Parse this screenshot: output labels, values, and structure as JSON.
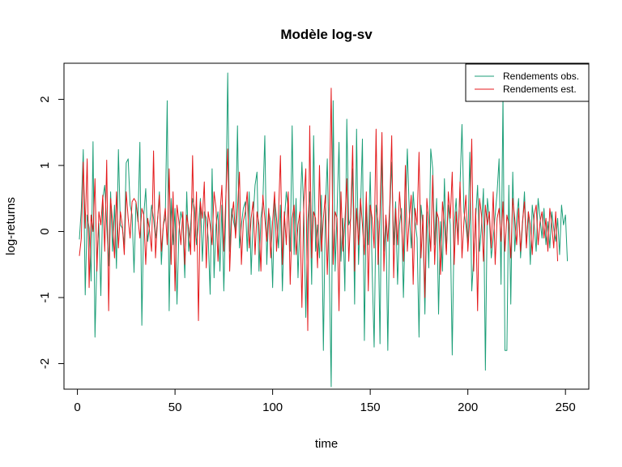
{
  "chart_data": {
    "type": "line",
    "title": "Modèle log-sv",
    "xlabel": "time",
    "ylabel": "log-returns",
    "xlim": [
      1,
      252
    ],
    "ylim": [
      -2.35,
      2.4
    ],
    "x_ticks": [
      0,
      50,
      100,
      150,
      200,
      250
    ],
    "y_ticks": [
      -2,
      -1,
      0,
      1,
      2
    ],
    "grid": false,
    "legend_position": "top-right",
    "series": [
      {
        "name": "Rendements obs.",
        "color": "#1b9e77",
        "values": [
          -0.12,
          0.35,
          1.24,
          -0.96,
          0.25,
          0.05,
          -0.75,
          1.36,
          -1.6,
          -0.4,
          0.12,
          -0.97,
          0.5,
          0.7,
          0.1,
          -0.52,
          0.6,
          -0.3,
          0.4,
          -0.56,
          1.24,
          0.1,
          0.05,
          -0.2,
          1.04,
          1.1,
          0.4,
          0.25,
          -0.62,
          0.44,
          0.15,
          1.35,
          -1.42,
          0.25,
          0.65,
          -0.15,
          0.1,
          0.4,
          0.2,
          -0.1,
          0.15,
          0.6,
          -0.5,
          0.1,
          0.2,
          1.98,
          -1.2,
          0.5,
          -0.2,
          0.35,
          -1.1,
          0.0,
          0.3,
          0.15,
          -0.7,
          0.6,
          -0.3,
          0.1,
          0.5,
          0.35,
          -0.2,
          0.1,
          0.5,
          -0.45,
          0.3,
          0.2,
          -0.1,
          -0.95,
          0.95,
          -0.7,
          0.1,
          0.3,
          -0.6,
          0.4,
          -0.9,
          0.3,
          2.4,
          -0.3,
          0.35,
          0.15,
          0.0,
          1.6,
          -0.25,
          0.1,
          0.35,
          0.45,
          -0.3,
          0.6,
          -0.65,
          0.2,
          0.7,
          0.9,
          -0.6,
          0.2,
          0.45,
          1.45,
          -0.5,
          0.3,
          0.15,
          -0.85,
          0.5,
          0.2,
          -0.25,
          0.4,
          -0.9,
          0.15,
          0.6,
          0.35,
          -0.3,
          1.6,
          -0.35,
          0.5,
          -0.7,
          0.2,
          1.05,
          0.25,
          -1.3,
          0.15,
          0.6,
          -0.8,
          1.45,
          -0.3,
          0.1,
          -0.4,
          0.55,
          -1.8,
          0.3,
          1.1,
          -0.5,
          -2.35,
          1.98,
          -0.6,
          0.3,
          1.35,
          -0.45,
          0.2,
          -0.9,
          1.7,
          0.1,
          0.2,
          0.95,
          -1.1,
          1.55,
          -0.5,
          0.3,
          1.4,
          -1.65,
          0.5,
          -0.2,
          0.9,
          -0.6,
          -1.75,
          0.4,
          0.15,
          -1.7,
          1.3,
          -0.3,
          0.2,
          -1.8,
          0.3,
          1.05,
          -0.2,
          0.45,
          -0.8,
          0.1,
          0.35,
          -1.0,
          0.2,
          1.25,
          0.3,
          -0.25,
          0.6,
          0.15,
          -0.1,
          -1.6,
          0.4,
          0.1,
          -1.25,
          0.3,
          -0.55,
          1.25,
          0.95,
          -0.2,
          0.5,
          -1.25,
          0.15,
          -0.6,
          0.8,
          -0.3,
          0.4,
          0.1,
          -1.87,
          0.1,
          0.5,
          -0.15,
          0.7,
          1.62,
          0.3,
          0.1,
          -0.2,
          1.2,
          -0.9,
          -0.4,
          0.2,
          0.7,
          -0.3,
          0.1,
          0.65,
          -2.1,
          0.5,
          0.2,
          -0.4,
          -0.1,
          0.25,
          0.6,
          1.1,
          -0.8,
          2.05,
          -1.8,
          -1.8,
          0.7,
          -1.1,
          0.9,
          -0.3,
          0.2,
          0.5,
          -0.4,
          0.1,
          0.6,
          -0.2,
          0.3,
          -0.5,
          0.4,
          0.1,
          -0.3,
          0.5,
          0.2,
          -0.1,
          0.35,
          -0.2,
          0.15,
          -0.25,
          0.3,
          0.05,
          -0.15,
          0.2,
          -0.35,
          0.4,
          0.1,
          0.25,
          -0.45
        ]
      },
      {
        "name": "Rendements est.",
        "color": "#e41a1c",
        "values": [
          -0.37,
          -0.1,
          1.05,
          0.05,
          1.1,
          -0.85,
          0.25,
          0.0,
          0.8,
          -0.6,
          0.3,
          0.1,
          0.55,
          -0.3,
          1.08,
          -1.2,
          0.5,
          0.15,
          -0.4,
          0.6,
          -0.25,
          0.3,
          0.1,
          -0.35,
          0.6,
          0.2,
          -0.1,
          0.45,
          0.5,
          0.45,
          0.2,
          -0.1,
          0.35,
          0.25,
          -0.5,
          0.2,
          0.0,
          -0.3,
          1.22,
          -0.4,
          0.15,
          0.55,
          -0.3,
          0.1,
          0.35,
          -0.2,
          0.95,
          -0.5,
          0.6,
          -0.9,
          0.4,
          0.15,
          -0.2,
          0.3,
          -0.5,
          0.25,
          0.05,
          -0.35,
          1.15,
          -0.3,
          0.6,
          -1.35,
          0.45,
          0.2,
          0.75,
          -0.55,
          0.3,
          0.1,
          -0.2,
          0.6,
          0.35,
          -0.45,
          0.25,
          0.7,
          -0.3,
          0.5,
          1.25,
          -0.6,
          0.2,
          0.45,
          -0.1,
          0.35,
          0.9,
          -0.5,
          0.15,
          0.3,
          0.6,
          -0.25,
          0.2,
          0.45,
          -0.35,
          0.3,
          0.1,
          -0.6,
          0.55,
          0.2,
          -0.15,
          0.35,
          -0.4,
          0.15,
          0.6,
          -0.3,
          0.25,
          1.15,
          -0.5,
          0.3,
          -0.2,
          0.6,
          -0.8,
          0.2,
          0.4,
          -0.35,
          0.1,
          0.3,
          -1.15,
          0.45,
          0.95,
          -1.5,
          1.6,
          -0.4,
          0.3,
          0.2,
          -0.55,
          1.0,
          -0.3,
          0.2,
          0.55,
          -0.65,
          0.35,
          2.17,
          -0.5,
          0.3,
          0.2,
          -1.2,
          0.6,
          -0.3,
          0.15,
          0.8,
          -0.45,
          0.25,
          1.3,
          -0.6,
          0.35,
          -0.2,
          0.5,
          0.1,
          -0.35,
          0.6,
          -0.9,
          0.4,
          0.2,
          -0.25,
          1.55,
          -0.5,
          0.3,
          1.5,
          -0.6,
          0.25,
          -0.15,
          0.4,
          1.45,
          -0.7,
          0.35,
          -0.2,
          0.6,
          0.15,
          -0.45,
          1.0,
          -0.3,
          0.2,
          0.55,
          -0.8,
          0.35,
          0.1,
          1.2,
          -0.4,
          0.25,
          -1.0,
          0.5,
          0.15,
          -0.3,
          0.85,
          -0.5,
          0.3,
          0.2,
          -0.65,
          0.45,
          0.1,
          -0.35,
          0.6,
          0.2,
          0.9,
          -0.5,
          0.3,
          -0.2,
          0.75,
          -0.4,
          0.15,
          0.55,
          -0.3,
          0.2,
          1.4,
          -0.6,
          0.35,
          -1.2,
          0.5,
          0.25,
          -0.45,
          0.4,
          0.1,
          0.3,
          -0.25,
          0.6,
          -0.5,
          0.2,
          0.35,
          -0.15,
          0.45,
          -0.3,
          0.25,
          0.1,
          -0.4,
          0.5,
          0.2,
          -0.2,
          0.35,
          -0.3,
          0.15,
          0.45,
          -0.25,
          0.3,
          0.1,
          -0.35,
          0.25,
          0.4,
          -0.2,
          0.15,
          0.3,
          -0.1,
          0.2,
          -0.3,
          0.35,
          0.1,
          -0.25,
          0.3,
          -0.45
        ]
      }
    ]
  }
}
